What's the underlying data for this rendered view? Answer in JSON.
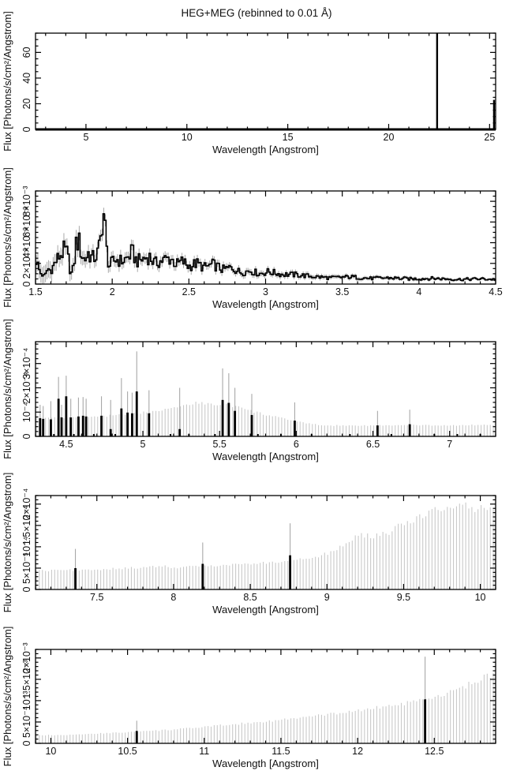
{
  "figure": {
    "title": "HEG+MEG (rebinned to 0.01 Å)",
    "xlabel": "Wavelength [Angstrom]",
    "ylabel": "Flux [Photons/s/cm²/Angstrom]"
  },
  "colors": {
    "foreground": "#000000",
    "error_whisker": "#a8a8a8",
    "comb_gray": "#c9c9c9",
    "background": "#ffffff"
  },
  "chart_data": [
    {
      "id": "panel-1",
      "type": "line",
      "style": "baseline-spikes",
      "xlabel": "Wavelength [Angstrom]",
      "ylabel": "Flux [Photons/s/cm²/Angstrom]",
      "xlim": [
        2.5,
        25.3
      ],
      "ylim": [
        0,
        75
      ],
      "x_major_ticks": [
        5,
        10,
        15,
        20,
        25
      ],
      "x_tick_labels": [
        "5",
        "10",
        "15",
        "20",
        "25"
      ],
      "x_minor_step": 1,
      "y_major_ticks": [
        0,
        20,
        40,
        60
      ],
      "y_tick_labels": [
        "0",
        "20",
        "40",
        "60"
      ],
      "y_minor_step": 5,
      "baseline": 0,
      "spikes": [
        {
          "x": 22.4,
          "y": 75,
          "clipped": true
        },
        {
          "x": 25.22,
          "y": 23,
          "clipped": false
        }
      ]
    },
    {
      "id": "panel-2",
      "type": "line",
      "style": "histogram-errorbars",
      "xlabel": "Wavelength [Angstrom]",
      "ylabel": "Flux [Photons/s/cm²/Angstrom]",
      "xlim": [
        1.5,
        4.5
      ],
      "ylim": [
        0,
        0.009
      ],
      "x_major_ticks": [
        1.5,
        2,
        2.5,
        3,
        3.5,
        4,
        4.5
      ],
      "x_tick_labels": [
        "1.5",
        "2",
        "2.5",
        "3",
        "3.5",
        "4",
        "4.5"
      ],
      "x_minor_step": 0.1,
      "y_major_ticks": [
        0,
        0.002,
        0.004,
        0.006,
        0.008
      ],
      "y_tick_labels": [
        "0",
        "2×10⁻³",
        "4×10⁻³",
        "6×10⁻³",
        "8×10⁻³"
      ],
      "y_minor_step": 0.0005,
      "bin_width": 0.01,
      "noise_amp": 0.3,
      "flux_points": [
        [
          1.5,
          0.0026
        ],
        [
          1.53,
          0.0011
        ],
        [
          1.56,
          0.0007
        ],
        [
          1.58,
          0.0015
        ],
        [
          1.6,
          0.0013
        ],
        [
          1.63,
          0.0021
        ],
        [
          1.66,
          0.0028
        ],
        [
          1.69,
          0.0033
        ],
        [
          1.71,
          0.0029
        ],
        [
          1.73,
          0.0009
        ],
        [
          1.75,
          0.0016
        ],
        [
          1.765,
          0.0039
        ],
        [
          1.78,
          0.0043
        ],
        [
          1.8,
          0.0029
        ],
        [
          1.82,
          0.0023
        ],
        [
          1.845,
          0.003
        ],
        [
          1.87,
          0.0025
        ],
        [
          1.89,
          0.0026
        ],
        [
          1.91,
          0.0031
        ],
        [
          1.925,
          0.0043
        ],
        [
          1.94,
          0.0074
        ],
        [
          1.95,
          0.0062
        ],
        [
          1.965,
          0.0032
        ],
        [
          1.98,
          0.0017
        ],
        [
          2.0,
          0.0021
        ],
        [
          2.03,
          0.0024
        ],
        [
          2.06,
          0.0022
        ],
        [
          2.1,
          0.0025
        ],
        [
          2.13,
          0.0031
        ],
        [
          2.16,
          0.0022
        ],
        [
          2.2,
          0.0024
        ],
        [
          2.24,
          0.0027
        ],
        [
          2.28,
          0.002
        ],
        [
          2.33,
          0.0023
        ],
        [
          2.38,
          0.0025
        ],
        [
          2.42,
          0.0019
        ],
        [
          2.46,
          0.0022
        ],
        [
          2.5,
          0.0017
        ],
        [
          2.55,
          0.002
        ],
        [
          2.6,
          0.0016
        ],
        [
          2.66,
          0.0019
        ],
        [
          2.72,
          0.0014
        ],
        [
          2.78,
          0.0016
        ],
        [
          2.84,
          0.0011
        ],
        [
          2.9,
          0.0013
        ],
        [
          2.96,
          0.001
        ],
        [
          3.02,
          0.0012
        ],
        [
          3.1,
          0.00095
        ],
        [
          3.2,
          0.0009
        ],
        [
          3.3,
          0.00075
        ],
        [
          3.42,
          0.0006
        ],
        [
          3.55,
          0.0007
        ],
        [
          3.68,
          0.00055
        ],
        [
          3.8,
          0.0006
        ],
        [
          3.95,
          0.0005
        ],
        [
          4.1,
          0.00055
        ],
        [
          4.25,
          0.00045
        ],
        [
          4.4,
          0.0005
        ],
        [
          4.5,
          0.00045
        ]
      ],
      "error_points": [
        [
          1.5,
          0.0009
        ],
        [
          2.0,
          0.00055
        ],
        [
          2.5,
          0.0004
        ],
        [
          3.0,
          0.00028
        ],
        [
          3.5,
          0.0002
        ],
        [
          4.0,
          0.00015
        ],
        [
          4.5,
          0.00012
        ]
      ]
    },
    {
      "id": "panel-3",
      "type": "line",
      "style": "comb-spikes",
      "xlabel": "Wavelength [Angstrom]",
      "ylabel": "Flux [Photons/s/cm²/Angstrom]",
      "xlim": [
        4.3,
        7.3
      ],
      "ylim": [
        0,
        0.00039
      ],
      "x_major_ticks": [
        4.5,
        5,
        5.5,
        6,
        6.5,
        7
      ],
      "x_tick_labels": [
        "4.5",
        "5",
        "5.5",
        "6",
        "6.5",
        "7"
      ],
      "x_minor_step": 0.1,
      "y_major_ticks": [
        0,
        0.0001,
        0.0002,
        0.0003
      ],
      "y_tick_labels": [
        "0",
        "10⁻⁴",
        "2×10⁻⁴",
        "3×10⁻⁴"
      ],
      "y_minor_step": 2e-05,
      "bin_width": 0.01,
      "envelope_points": [
        [
          4.3,
          7.5e-05
        ],
        [
          4.5,
          7.8e-05
        ],
        [
          4.7,
          8.2e-05
        ],
        [
          4.85,
          8.8e-05
        ],
        [
          5.0,
          9.8e-05
        ],
        [
          5.1,
          0.000108
        ],
        [
          5.2,
          0.00012
        ],
        [
          5.3,
          0.000133
        ],
        [
          5.37,
          0.00014
        ],
        [
          5.45,
          0.00013
        ],
        [
          5.52,
          0.000133
        ],
        [
          5.6,
          0.000125
        ],
        [
          5.7,
          0.000105
        ],
        [
          5.8,
          9e-05
        ],
        [
          5.9,
          7.5e-05
        ],
        [
          6.0,
          6.2e-05
        ],
        [
          6.1,
          5e-05
        ],
        [
          6.2,
          4.5e-05
        ],
        [
          6.5,
          4.5e-05
        ],
        [
          6.8,
          4.6e-05
        ],
        [
          7.0,
          4.5e-05
        ],
        [
          7.3,
          4.8e-05
        ]
      ],
      "spikes": [
        {
          "x": 4.33,
          "y": 7.5e-05,
          "err_top": 0.00013
        },
        {
          "x": 4.35,
          "y": 7.2e-05,
          "err_top": 0.000125
        },
        {
          "x": 4.4,
          "y": 7e-05,
          "err_top": 0.000145
        },
        {
          "x": 4.45,
          "y": 0.000155,
          "err_top": 0.000245
        },
        {
          "x": 4.47,
          "y": 7.8e-05,
          "err_top": 0.00013
        },
        {
          "x": 4.5,
          "y": 0.000165,
          "err_top": 0.00025
        },
        {
          "x": 4.53,
          "y": 7.8e-05,
          "err_top": 0.000155
        },
        {
          "x": 4.58,
          "y": 8.2e-05,
          "err_top": 0.00016
        },
        {
          "x": 4.61,
          "y": 8.5e-05,
          "err_top": 0.000162
        },
        {
          "x": 4.63,
          "y": 8.2e-05,
          "err_top": 0.000155
        },
        {
          "x": 4.73,
          "y": 8.5e-05,
          "err_top": 0.000165
        },
        {
          "x": 4.79,
          "y": 3e-05,
          "err_top": 0.00015
        },
        {
          "x": 4.86,
          "y": 0.000115,
          "err_top": 0.00024
        },
        {
          "x": 4.9,
          "y": 9.8e-05,
          "err_top": 0.000185
        },
        {
          "x": 4.93,
          "y": 9.5e-05,
          "err_top": 0.00018
        },
        {
          "x": 4.96,
          "y": 0.000185,
          "err_top": 0.00035
        },
        {
          "x": 5.04,
          "y": 9.5e-05,
          "err_top": 0.00019
        },
        {
          "x": 5.24,
          "y": 3e-05,
          "err_top": 0.0002
        },
        {
          "x": 5.52,
          "y": 0.00015,
          "err_top": 0.00028
        },
        {
          "x": 5.56,
          "y": 0.000138,
          "err_top": 0.00026
        },
        {
          "x": 5.6,
          "y": 0.000105,
          "err_top": 0.0002
        },
        {
          "x": 5.71,
          "y": 8.8e-05,
          "err_top": 0.000175
        },
        {
          "x": 5.99,
          "y": 6.5e-05,
          "err_top": 0.00014
        },
        {
          "x": 6.53,
          "y": 4.5e-05,
          "err_top": 0.000105
        },
        {
          "x": 6.74,
          "y": 5e-05,
          "err_top": 0.00011
        }
      ],
      "baseline_marks": [
        4.42,
        4.55,
        4.68,
        4.82,
        5.18,
        5.3,
        5.47,
        5.75,
        5.9,
        6.1,
        6.35,
        6.62,
        6.9,
        7.05,
        7.2
      ]
    },
    {
      "id": "panel-4",
      "type": "line",
      "style": "comb-spikes",
      "xlabel": "Wavelength [Angstrom]",
      "ylabel": "Flux [Photons/s/cm²/Angstrom]",
      "xlim": [
        7.1,
        10.1
      ],
      "ylim": [
        0,
        0.00022
      ],
      "x_major_ticks": [
        7.5,
        8,
        8.5,
        9,
        9.5,
        10
      ],
      "x_tick_labels": [
        "7.5",
        "8",
        "8.5",
        "9",
        "9.5",
        "10"
      ],
      "x_minor_step": 0.1,
      "y_major_ticks": [
        0,
        5e-05,
        0.0001,
        0.00015,
        0.0002
      ],
      "y_tick_labels": [
        "0",
        "5×10⁻⁵",
        "10⁻⁴",
        "1.5×10⁻⁴",
        "2×10⁻⁴"
      ],
      "y_minor_step": 1e-05,
      "bin_width": 0.01,
      "envelope_points": [
        [
          7.1,
          4.4e-05
        ],
        [
          7.3,
          4.5e-05
        ],
        [
          7.5,
          4.7e-05
        ],
        [
          7.7,
          5e-05
        ],
        [
          7.85,
          5.2e-05
        ],
        [
          7.92,
          5.6e-05
        ],
        [
          8.0,
          5e-05
        ],
        [
          8.1,
          5.3e-05
        ],
        [
          8.2,
          5.5e-05
        ],
        [
          8.35,
          5.8e-05
        ],
        [
          8.5,
          6e-05
        ],
        [
          8.65,
          6.4e-05
        ],
        [
          8.8,
          7e-05
        ],
        [
          8.95,
          7.8e-05
        ],
        [
          9.05,
          9e-05
        ],
        [
          9.15,
          0.000115
        ],
        [
          9.22,
          0.000128
        ],
        [
          9.3,
          0.000124
        ],
        [
          9.4,
          0.000132
        ],
        [
          9.5,
          0.000155
        ],
        [
          9.6,
          0.000168
        ],
        [
          9.7,
          0.000188
        ],
        [
          9.8,
          0.00019
        ],
        [
          9.9,
          0.000197
        ],
        [
          9.95,
          0.000188
        ],
        [
          10.0,
          0.000192
        ],
        [
          10.1,
          0.000195
        ]
      ],
      "spikes": [
        {
          "x": 7.36,
          "y": 5e-05,
          "err_top": 9.5e-05
        },
        {
          "x": 8.19,
          "y": 6e-05,
          "err_top": 0.00011
        },
        {
          "x": 8.76,
          "y": 8e-05,
          "err_top": 0.000155
        }
      ],
      "baseline_marks": []
    },
    {
      "id": "panel-5",
      "type": "line",
      "style": "comb-spikes",
      "xlabel": "Wavelength [Angstrom]",
      "ylabel": "Flux [Photons/s/cm²/Angstrom]",
      "xlim": [
        9.9,
        12.9
      ],
      "ylim": [
        0,
        0.0022
      ],
      "x_major_ticks": [
        10,
        10.5,
        11,
        11.5,
        12,
        12.5
      ],
      "x_tick_labels": [
        "10",
        "10.5",
        "11",
        "11.5",
        "12",
        "12.5"
      ],
      "x_minor_step": 0.1,
      "y_major_ticks": [
        0,
        0.0005,
        0.001,
        0.0015,
        0.002
      ],
      "y_tick_labels": [
        "0",
        "5×10⁻⁴",
        "10⁻³",
        "1.5×10⁻³",
        "2×10⁻³"
      ],
      "y_minor_step": 0.0001,
      "bin_width": 0.01,
      "envelope_points": [
        [
          9.9,
          0.00019
        ],
        [
          10.1,
          0.0002
        ],
        [
          10.3,
          0.00023
        ],
        [
          10.5,
          0.00026
        ],
        [
          10.7,
          0.0003
        ],
        [
          10.9,
          0.00035
        ],
        [
          11.1,
          0.00042
        ],
        [
          11.3,
          0.00048
        ],
        [
          11.5,
          0.00055
        ],
        [
          11.7,
          0.00063
        ],
        [
          11.9,
          0.00072
        ],
        [
          12.1,
          0.00082
        ],
        [
          12.3,
          0.00093
        ],
        [
          12.45,
          0.00102
        ],
        [
          12.55,
          0.00112
        ],
        [
          12.65,
          0.00125
        ],
        [
          12.75,
          0.00142
        ],
        [
          12.85,
          0.00158
        ],
        [
          12.9,
          0.00165
        ]
      ],
      "spikes": [
        {
          "x": 10.56,
          "y": 0.00029,
          "err_top": 0.00053
        },
        {
          "x": 12.44,
          "y": 0.00103,
          "err_top": 0.00203
        }
      ],
      "baseline_marks": []
    }
  ]
}
